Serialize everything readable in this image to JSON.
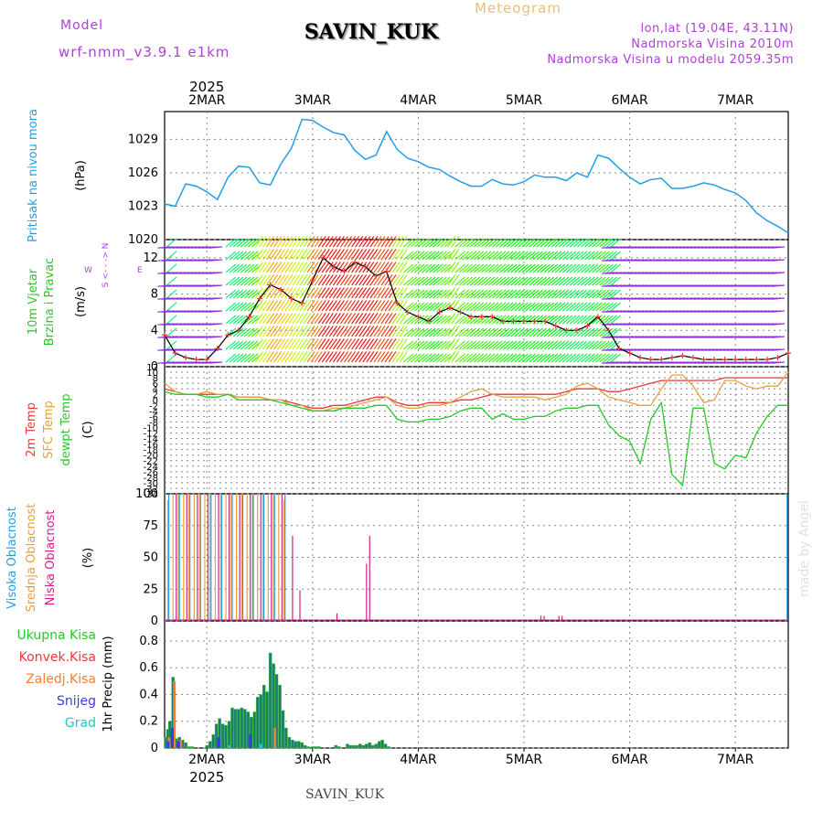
{
  "header": {
    "model_label": "Model",
    "model_name": "wrf-nmm_v3.9.1  e1km",
    "title": "SAVIN_KUK",
    "meteogram_label": "Meteogram",
    "location_line": "lon,lat (19.04E, 43.11N)",
    "elevation_line": "Nadmorska Visina 2010m",
    "model_elevation_line": "Nadmorska Visina u modelu 2059.35m"
  },
  "footer": {
    "station": "SAVIN_KUK"
  },
  "colors": {
    "pressure": "#1ea0e6",
    "wind_speed": "#000000",
    "wind_marker": "#e83a3a",
    "temp_2m": "#e83a3a",
    "sfc_temp": "#e8a040",
    "dewpoint": "#28c828",
    "high_cloud": "#1ea0e6",
    "mid_cloud": "#e8a040",
    "low_cloud": "#d0208a",
    "total_precip": "#28c828",
    "convective_precip": "#e83a3a",
    "freezing_precip": "#f08030",
    "snow": "#3a3ae8",
    "graupel": "#20c8c8",
    "axis_label_purple": "#b040d8"
  },
  "chart_data": {
    "type": "meteogram",
    "x_axis": {
      "year": "2025",
      "range_days": [
        1.6,
        7.5
      ],
      "tick_labels": [
        "2MAR",
        "3MAR",
        "4MAR",
        "5MAR",
        "6MAR",
        "7MAR"
      ],
      "tick_days": [
        2,
        3,
        4,
        5,
        6,
        7
      ]
    },
    "panels": [
      {
        "id": "pressure",
        "type": "line",
        "ylabel": "Pritisak na nivou mora",
        "unit": "(hPa)",
        "ylim": [
          1020,
          1031.5
        ],
        "yticks": [
          1020,
          1023,
          1026,
          1029
        ],
        "x": [
          1.6,
          1.7,
          1.8,
          1.9,
          2.0,
          2.1,
          2.2,
          2.3,
          2.4,
          2.5,
          2.6,
          2.7,
          2.8,
          2.9,
          3.0,
          3.1,
          3.2,
          3.3,
          3.4,
          3.5,
          3.6,
          3.7,
          3.8,
          3.9,
          4.0,
          4.1,
          4.2,
          4.3,
          4.4,
          4.5,
          4.6,
          4.7,
          4.8,
          4.9,
          5.0,
          5.1,
          5.2,
          5.3,
          5.4,
          5.5,
          5.6,
          5.7,
          5.8,
          5.9,
          6.0,
          6.1,
          6.2,
          6.3,
          6.4,
          6.5,
          6.6,
          6.7,
          6.8,
          6.9,
          7.0,
          7.1,
          7.2,
          7.3,
          7.4,
          7.5
        ],
        "values": [
          1023.2,
          1023.0,
          1025.0,
          1024.8,
          1024.3,
          1023.6,
          1025.6,
          1026.6,
          1026.5,
          1025.1,
          1024.9,
          1026.8,
          1028.2,
          1030.8,
          1030.7,
          1030.1,
          1029.6,
          1029.4,
          1028.0,
          1027.2,
          1027.6,
          1029.7,
          1028.1,
          1027.3,
          1027.0,
          1026.5,
          1026.3,
          1025.7,
          1025.2,
          1024.8,
          1024.8,
          1025.4,
          1025.0,
          1024.9,
          1025.2,
          1025.8,
          1025.6,
          1025.6,
          1025.3,
          1026.0,
          1025.6,
          1027.6,
          1027.3,
          1026.4,
          1025.6,
          1025.0,
          1025.4,
          1025.5,
          1024.6,
          1024.6,
          1024.8,
          1025.1,
          1024.9,
          1024.5,
          1024.2,
          1023.5,
          1022.4,
          1021.7,
          1021.2,
          1020.6
        ]
      },
      {
        "id": "wind",
        "type": "line+barbs",
        "ylabel": "10m Vjetar Brzina i Pravac",
        "unit": "(m/s)",
        "direction_legend": [
          "W",
          "<-",
          "E",
          "N",
          "S"
        ],
        "ylim": [
          0,
          14
        ],
        "yticks": [
          0,
          4,
          8,
          12
        ],
        "x": [
          1.6,
          1.7,
          1.8,
          1.9,
          2.0,
          2.1,
          2.2,
          2.3,
          2.4,
          2.5,
          2.6,
          2.7,
          2.8,
          2.9,
          3.0,
          3.1,
          3.2,
          3.3,
          3.4,
          3.5,
          3.6,
          3.7,
          3.8,
          3.9,
          4.0,
          4.1,
          4.2,
          4.3,
          4.4,
          4.5,
          4.6,
          4.7,
          4.8,
          4.9,
          5.0,
          5.1,
          5.2,
          5.3,
          5.4,
          5.5,
          5.6,
          5.7,
          5.8,
          5.9,
          6.0,
          6.1,
          6.2,
          6.3,
          6.4,
          6.5,
          6.6,
          6.7,
          6.8,
          6.9,
          7.0,
          7.1,
          7.2,
          7.3,
          7.4,
          7.5
        ],
        "values": [
          3.5,
          1.5,
          1.0,
          0.8,
          0.8,
          2.0,
          3.5,
          4.0,
          5.5,
          7.5,
          9.0,
          8.5,
          7.5,
          7.0,
          9.5,
          12.0,
          11.0,
          10.5,
          11.5,
          11.0,
          10.0,
          10.5,
          7.0,
          6.0,
          5.5,
          5.0,
          6.0,
          6.5,
          6.0,
          5.5,
          5.5,
          5.5,
          5.0,
          5.0,
          5.0,
          5.0,
          5.0,
          4.5,
          4.0,
          4.0,
          4.5,
          5.5,
          4.0,
          2.0,
          1.5,
          1.0,
          0.8,
          0.8,
          1.0,
          1.2,
          1.0,
          0.8,
          0.8,
          0.8,
          0.8,
          0.8,
          0.8,
          0.8,
          1.0,
          1.5
        ]
      },
      {
        "id": "temperature",
        "type": "line",
        "series_labels": [
          "2m Temp",
          "SFC Temp",
          "dewpt Temp"
        ],
        "unit": "(C)",
        "ylim": [
          -34,
          12
        ],
        "yticks": [
          12,
          10,
          8,
          6,
          4,
          2,
          0,
          -2,
          -4,
          -6,
          -8,
          -10,
          -12,
          -14,
          -16,
          -18,
          -20,
          -22,
          -24,
          -26,
          -28,
          -30,
          -32,
          -34
        ],
        "x": [
          1.6,
          1.7,
          1.8,
          1.9,
          2.0,
          2.1,
          2.2,
          2.3,
          2.4,
          2.5,
          2.6,
          2.7,
          2.8,
          2.9,
          3.0,
          3.1,
          3.2,
          3.3,
          3.4,
          3.5,
          3.6,
          3.7,
          3.8,
          3.9,
          4.0,
          4.1,
          4.2,
          4.3,
          4.4,
          4.5,
          4.6,
          4.7,
          4.8,
          4.9,
          5.0,
          5.1,
          5.2,
          5.3,
          5.4,
          5.5,
          5.6,
          5.7,
          5.8,
          5.9,
          6.0,
          6.1,
          6.2,
          6.3,
          6.4,
          6.5,
          6.6,
          6.7,
          6.8,
          6.9,
          7.0,
          7.1,
          7.2,
          7.3,
          7.4,
          7.5
        ],
        "series": [
          {
            "name": "2m Temp",
            "values": [
              4,
              3,
              2,
              2,
              2,
              2,
              2,
              1,
              1,
              1,
              0,
              0,
              -1,
              -2,
              -3,
              -3,
              -2,
              -2,
              -1,
              0,
              1,
              1,
              -1,
              -2,
              -2,
              -1,
              -1,
              -1,
              0,
              0,
              1,
              2,
              2,
              2,
              2,
              2,
              2,
              2,
              3,
              4,
              4,
              4,
              3,
              3,
              4,
              5,
              6,
              7,
              7,
              7,
              7,
              7,
              7,
              8,
              8,
              8,
              8,
              8,
              8,
              8
            ]
          },
          {
            "name": "SFC Temp",
            "values": [
              6,
              3,
              2,
              2,
              3,
              2,
              2,
              1,
              1,
              1,
              0,
              0,
              -2,
              -2,
              -4,
              -4,
              -3,
              -3,
              -2,
              -1,
              0,
              1,
              -2,
              -3,
              -3,
              -2,
              -2,
              -1,
              1,
              3,
              4,
              2,
              1,
              1,
              1,
              1,
              0,
              1,
              2,
              5,
              6,
              4,
              1,
              0,
              -1,
              -2,
              -2,
              4,
              9,
              9,
              5,
              -1,
              0,
              7,
              7,
              5,
              4,
              5,
              5,
              10
            ]
          },
          {
            "name": "dewpt Temp",
            "values": [
              3,
              2,
              2,
              2,
              1,
              1,
              2,
              0,
              0,
              0,
              0,
              -1,
              -2,
              -3,
              -4,
              -4,
              -4,
              -3,
              -3,
              -3,
              -2,
              -2,
              -7,
              -8,
              -8,
              -7,
              -7,
              -6,
              -4,
              -3,
              -3,
              -7,
              -5,
              -7,
              -7,
              -6,
              -6,
              -4,
              -3,
              -3,
              -2,
              -2,
              -9,
              -13,
              -15,
              -23,
              -7,
              -1,
              -27,
              -31,
              -3,
              -3,
              -23,
              -25,
              -20,
              -21,
              -12,
              -6,
              -2,
              -2
            ]
          }
        ]
      },
      {
        "id": "clouds",
        "type": "bar",
        "series_labels": [
          "Visoka Oblacnost",
          "Srednja Oblacnost",
          "Niska Oblacnost"
        ],
        "unit": "(%)",
        "ylim": [
          0,
          100
        ],
        "yticks": [
          0,
          25,
          50,
          75,
          100
        ],
        "series": [
          {
            "name": "Visoka Oblacnost",
            "x": [
              1.65,
              1.75,
              1.85,
              1.95,
              2.05,
              2.15,
              2.25,
              2.35,
              2.45,
              2.55,
              2.65,
              2.75,
              7.5
            ],
            "values": [
              100,
              100,
              100,
              100,
              100,
              100,
              100,
              100,
              100,
              100,
              100,
              100,
              100
            ]
          },
          {
            "name": "Srednja Oblacnost",
            "x": [
              1.63,
              1.68,
              1.73,
              1.78,
              1.83,
              1.88,
              1.93,
              1.98,
              2.03,
              2.08,
              2.13,
              2.18,
              2.23,
              2.28,
              2.33,
              2.38,
              2.43,
              2.48,
              2.53,
              2.58,
              2.63,
              2.68,
              2.73
            ],
            "values": [
              95,
              100,
              100,
              100,
              100,
              100,
              100,
              100,
              100,
              100,
              100,
              100,
              100,
              100,
              100,
              100,
              100,
              100,
              100,
              100,
              100,
              100,
              95
            ]
          },
          {
            "name": "Niska Oblacnost",
            "x": [
              1.7,
              1.8,
              1.9,
              2.0,
              2.1,
              2.2,
              2.3,
              2.4,
              2.5,
              2.6,
              2.7,
              2.8,
              2.87,
              3.22,
              3.5,
              3.53,
              5.15,
              5.18,
              5.32,
              5.35,
              6.75
            ],
            "values": [
              100,
              100,
              100,
              100,
              100,
              100,
              100,
              100,
              100,
              100,
              100,
              67,
              24,
              6,
              45,
              67,
              4,
              4,
              4,
              4,
              1
            ]
          }
        ]
      },
      {
        "id": "precip",
        "type": "bar",
        "ylabel": "1hr Precip (mm)",
        "series_labels": [
          "Ukupna Kisa",
          "Konvek.Kisa",
          "Zaledj.Kisa",
          "Snijeg",
          "Grad"
        ],
        "ylim": [
          0,
          0.95
        ],
        "yticks": [
          0,
          0.2,
          0.4,
          0.6,
          0.8
        ],
        "series": [
          {
            "name": "Ukupna Kisa",
            "x": [
              1.61,
              1.63,
              1.65,
              1.68,
              1.71,
              1.74,
              1.77,
              1.8,
              1.83,
              1.86,
              2.0,
              2.03,
              2.06,
              2.09,
              2.12,
              2.15,
              2.18,
              2.21,
              2.24,
              2.27,
              2.3,
              2.33,
              2.36,
              2.39,
              2.42,
              2.45,
              2.48,
              2.51,
              2.54,
              2.57,
              2.6,
              2.63,
              2.66,
              2.69,
              2.72,
              2.75,
              2.78,
              2.81,
              2.84,
              2.87,
              2.9,
              2.93,
              2.96,
              3.0,
              3.03,
              3.06,
              3.22,
              3.25,
              3.33,
              3.36,
              3.39,
              3.42,
              3.45,
              3.48,
              3.51,
              3.54,
              3.57,
              3.6,
              3.63,
              3.66,
              3.69,
              3.72
            ],
            "values": [
              0.08,
              0.14,
              0.2,
              0.53,
              0.07,
              0.08,
              0.06,
              0.04,
              0.01,
              0.01,
              0.02,
              0.05,
              0.1,
              0.18,
              0.22,
              0.18,
              0.17,
              0.2,
              0.3,
              0.29,
              0.29,
              0.3,
              0.29,
              0.27,
              0.23,
              0.27,
              0.38,
              0.4,
              0.47,
              0.42,
              0.71,
              0.63,
              0.55,
              0.47,
              0.28,
              0.15,
              0.08,
              0.06,
              0.05,
              0.05,
              0.04,
              0.02,
              0.01,
              0.01,
              0.01,
              0.01,
              0.02,
              0.01,
              0.03,
              0.02,
              0.02,
              0.02,
              0.03,
              0.02,
              0.03,
              0.04,
              0.02,
              0.03,
              0.05,
              0.06,
              0.03,
              0.01
            ]
          },
          {
            "name": "Zaledj.Kisa",
            "x": [
              1.63,
              1.68,
              1.74,
              2.63
            ],
            "values": [
              0.08,
              0.5,
              0.06,
              0.15
            ]
          },
          {
            "name": "Snijeg",
            "x": [
              1.62,
              1.66,
              1.72,
              2.1,
              2.4
            ],
            "values": [
              0.05,
              0.15,
              0.05,
              0.08,
              0.1
            ]
          },
          {
            "name": "Grad",
            "x": [
              2.2,
              2.5
            ],
            "values": [
              0.02,
              0.03
            ]
          }
        ]
      }
    ],
    "watermark": "made by Angel"
  }
}
